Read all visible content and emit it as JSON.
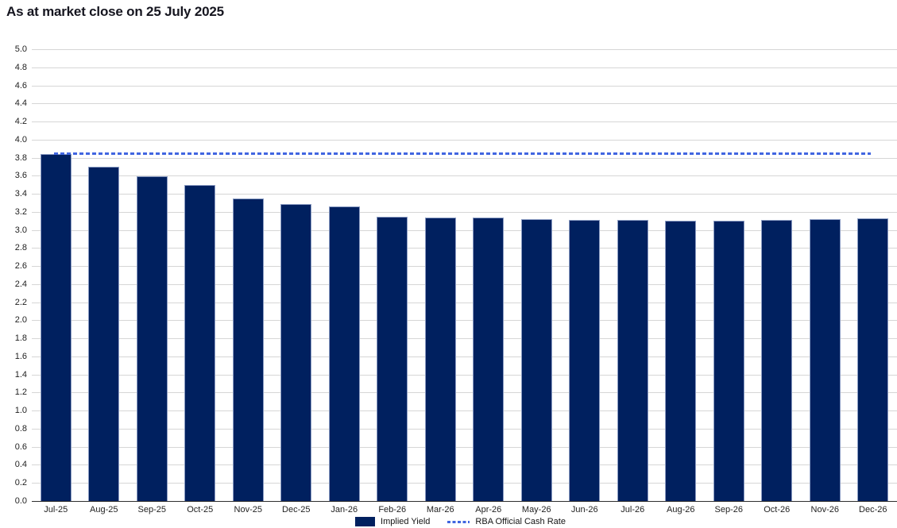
{
  "title": "As at market close on 25 July 2025",
  "chart_data": {
    "type": "bar",
    "title": "As at market close on 25 July 2025",
    "categories": [
      "Jul-25",
      "Aug-25",
      "Sep-25",
      "Oct-25",
      "Nov-25",
      "Dec-25",
      "Jan-26",
      "Feb-26",
      "Mar-26",
      "Apr-26",
      "May-26",
      "Jun-26",
      "Jul-26",
      "Aug-26",
      "Sep-26",
      "Oct-26",
      "Nov-26",
      "Dec-26"
    ],
    "series": [
      {
        "name": "Implied Yield",
        "type": "bar",
        "color": "#00205f",
        "values": [
          3.84,
          3.7,
          3.59,
          3.5,
          3.35,
          3.29,
          3.26,
          3.15,
          3.14,
          3.14,
          3.12,
          3.11,
          3.11,
          3.1,
          3.1,
          3.11,
          3.12,
          3.13
        ]
      },
      {
        "name": "RBA Official Cash Rate",
        "type": "line",
        "style": "dashed",
        "color": "#4166e0",
        "value": 3.85
      }
    ],
    "xlabel": "",
    "ylabel": "",
    "ylim": [
      0,
      5
    ],
    "ytick_step": 0.2,
    "yticks": [
      "5.0",
      "4.8",
      "4.6",
      "4.4",
      "4.2",
      "4.0",
      "3.8",
      "3.6",
      "3.4",
      "3.2",
      "3.0",
      "2.8",
      "2.6",
      "2.4",
      "2.2",
      "2.0",
      "1.8",
      "1.6",
      "1.4",
      "1.2",
      "1.0",
      "0.8",
      "0.6",
      "0.4",
      "0.2",
      "0.0"
    ],
    "grid": "horizontal",
    "legend_position": "bottom"
  },
  "colors": {
    "bar_fill": "#00205f",
    "bar_border": "#8b9cc3",
    "cash_rate_line": "#4166e0",
    "gridline": "#d6d6d6",
    "axis_line": "#2e2e2e",
    "title_text": "#15151f",
    "axis_text": "#1f1f1f"
  }
}
